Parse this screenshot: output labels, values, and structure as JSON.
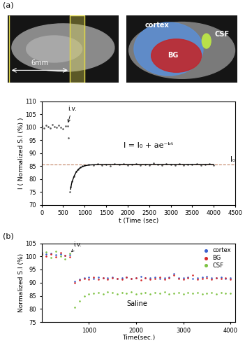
{
  "panel_labels": [
    "(a)",
    "(b)"
  ],
  "images": {
    "scale_label": "6mm",
    "regions": [
      {
        "name": "cortex",
        "color": "#5b8fd6"
      },
      {
        "name": "BG",
        "color": "#c0282d"
      },
      {
        "name": "CSF",
        "color": "#b8e04a"
      }
    ]
  },
  "chart_data": [
    {
      "type": "scatter",
      "xlabel": "t (Time (sec)",
      "ylabel": "I ( Normalized S.I (%) )",
      "xlim": [
        0,
        4500
      ],
      "ylim": [
        70,
        110
      ],
      "xticks": [
        0,
        500,
        1000,
        1500,
        2000,
        2500,
        3000,
        3500,
        4000,
        4500
      ],
      "yticks": [
        70,
        75,
        80,
        85,
        90,
        95,
        100,
        105,
        110
      ],
      "series": [
        {
          "type": "scatter",
          "color": "#555555",
          "marker": "dot",
          "x": [
            0,
            50,
            100,
            150,
            200,
            250,
            300,
            350,
            400,
            450,
            500,
            550,
            600,
            620,
            650,
            675,
            700,
            750,
            800,
            850,
            900,
            950,
            1000,
            1100,
            1200,
            1300,
            1400,
            1500,
            1600,
            1700,
            1800,
            1900,
            2000,
            2100,
            2200,
            2300,
            2400,
            2500,
            2600,
            2700,
            2800,
            2900,
            3000,
            3100,
            3200,
            3300,
            3400,
            3500,
            3600,
            3700,
            3800,
            3900,
            4000
          ],
          "values": [
            100.5,
            99.8,
            100.9,
            100.2,
            99.6,
            101.0,
            100.3,
            99.9,
            100.7,
            100.1,
            99.5,
            100.6,
            100.4,
            96.0,
            75.0,
            77.0,
            79.0,
            81.0,
            82.8,
            83.8,
            84.5,
            85.0,
            85.3,
            85.6,
            85.2,
            85.9,
            85.4,
            85.7,
            85.1,
            85.8,
            85.5,
            86.0,
            85.3,
            85.6,
            85.9,
            85.2,
            85.7,
            85.4,
            86.1,
            85.5,
            85.3,
            85.8,
            85.6,
            85.2,
            85.9,
            85.4,
            85.7,
            85.5,
            86.0,
            85.3,
            85.6,
            85.8,
            85.4
          ]
        },
        {
          "type": "line",
          "color": "#000000",
          "line_style": "solid",
          "x": [
            670,
            700,
            750,
            800,
            850,
            900,
            1000,
            1100,
            1200,
            1400,
            1600,
            2000,
            3000,
            4000
          ],
          "values": [
            76.0,
            78.5,
            80.9,
            82.6,
            83.7,
            84.4,
            85.1,
            85.4,
            85.5,
            85.6,
            85.6,
            85.6,
            85.6,
            85.6
          ]
        }
      ],
      "reference_line": {
        "value": 85.5,
        "label": "I₀",
        "color": "#c08060",
        "line_style": "dashed"
      },
      "annotations": [
        {
          "text": "i.v.",
          "x": 600,
          "y": 101
        },
        {
          "text": "I = I₀ + ae⁻ᵇᵗ",
          "x": 1900,
          "y": 93
        }
      ]
    },
    {
      "type": "scatter",
      "xlabel": "Time(sec.)",
      "ylabel": "Normalized S.I (%)",
      "xlim": [
        0,
        4100
      ],
      "ylim": [
        75,
        105
      ],
      "xticks": [
        1000,
        2000,
        3000,
        4000
      ],
      "yticks": [
        75,
        80,
        85,
        90,
        95,
        100,
        105
      ],
      "legend": "upper right",
      "x": [
        0,
        100,
        200,
        300,
        400,
        500,
        600,
        700,
        800,
        900,
        1000,
        1100,
        1200,
        1300,
        1400,
        1500,
        1600,
        1700,
        1800,
        1900,
        2000,
        2100,
        2200,
        2300,
        2400,
        2500,
        2600,
        2700,
        2800,
        2900,
        3000,
        3100,
        3200,
        3300,
        3400,
        3500,
        3600,
        3700,
        3800,
        3900,
        4000
      ],
      "series": [
        {
          "name": "cortex",
          "color": "#3a5fcd",
          "marker": "dot",
          "values": [
            101.5,
            100.8,
            101.2,
            100.5,
            100.9,
            100.3,
            100.6,
            90.5,
            91.2,
            91.8,
            92.0,
            91.6,
            92.1,
            91.7,
            91.9,
            92.2,
            91.5,
            91.8,
            92.0,
            91.6,
            91.9,
            92.3,
            91.7,
            91.8,
            92.1,
            91.6,
            91.9,
            92.0,
            93.5,
            91.7,
            91.8,
            92.0,
            91.6,
            91.9,
            92.1,
            92.4,
            91.7,
            91.8,
            92.0,
            91.6,
            91.9
          ]
        },
        {
          "name": "BG",
          "color": "#d62728",
          "marker": "dot",
          "values": [
            101.0,
            100.2,
            100.9,
            99.8,
            101.3,
            100.4,
            99.9,
            90.0,
            91.0,
            91.5,
            91.3,
            92.0,
            91.4,
            91.8,
            91.2,
            91.9,
            91.6,
            91.3,
            92.2,
            91.5,
            91.7,
            91.1,
            91.9,
            91.4,
            91.6,
            92.0,
            91.3,
            91.8,
            92.8,
            91.5,
            91.2,
            91.7,
            93.0,
            91.4,
            91.6,
            91.9,
            91.3,
            91.7,
            91.5,
            91.8,
            91.4
          ]
        },
        {
          "name": "CSF",
          "color": "#7dc242",
          "marker": "dot",
          "values": [
            100.5,
            101.8,
            99.5,
            102.0,
            100.2,
            99.0,
            101.2,
            80.5,
            83.0,
            84.8,
            85.6,
            86.0,
            86.3,
            85.8,
            86.4,
            86.1,
            85.7,
            86.2,
            85.9,
            86.5,
            85.8,
            86.0,
            86.3,
            85.6,
            86.1,
            85.9,
            86.4,
            85.7,
            86.0,
            86.2,
            85.8,
            86.3,
            85.9,
            86.1,
            85.6,
            86.0,
            86.2,
            85.8,
            86.1,
            85.9,
            86.0
          ]
        }
      ],
      "annotations": [
        {
          "text": "i.v.",
          "x": 600,
          "y": 101
        },
        {
          "text": "Saline",
          "x": 1800,
          "y": 82
        }
      ]
    }
  ]
}
